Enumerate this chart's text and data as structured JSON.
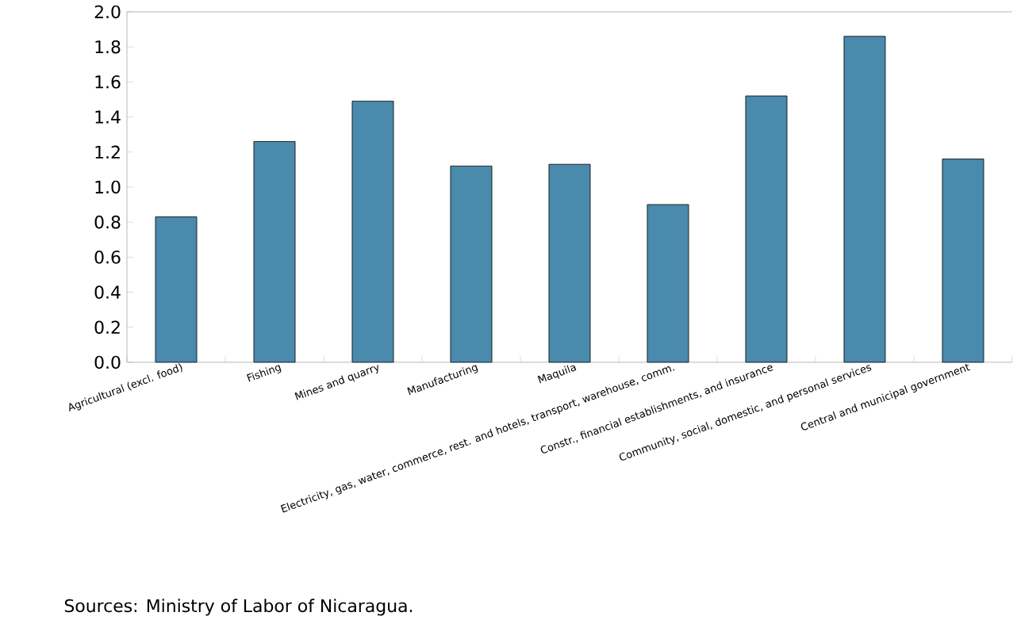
{
  "chart_data": {
    "type": "bar",
    "categories": [
      "Agricultural (excl. food)",
      "Fishing",
      "Mines and quarry",
      "Manufacturing",
      "Maquila",
      "Electricity, gas, water, commerce, rest. and hotels, transport, warehouse, comm.",
      "Constr., financial establishments, and insurance",
      "Community, social, domestic, and personal services",
      "Central and municipal government"
    ],
    "values": [
      0.83,
      1.26,
      1.49,
      1.12,
      1.13,
      0.9,
      1.52,
      1.86,
      1.16
    ],
    "color": "#4a8aac",
    "ylim": [
      0,
      2.0
    ],
    "yticks": [
      {
        "value": 0,
        "label": "0.0"
      },
      {
        "value": 0.2,
        "label": "0.2"
      },
      {
        "value": 0.4,
        "label": "0.4"
      },
      {
        "value": 0.6,
        "label": "0.6"
      },
      {
        "value": 0.8,
        "label": "0.8"
      },
      {
        "value": 1.0,
        "label": "1.0"
      },
      {
        "value": 1.2,
        "label": "1.2"
      },
      {
        "value": 1.4,
        "label": "1.4"
      },
      {
        "value": 1.6,
        "label": "1.6"
      },
      {
        "value": 1.8,
        "label": "1.8"
      },
      {
        "value": 2.0,
        "label": "2.0"
      }
    ],
    "grid": false,
    "annotations": [
      "Sources: Ministry of Labor of Nicaragua."
    ]
  }
}
